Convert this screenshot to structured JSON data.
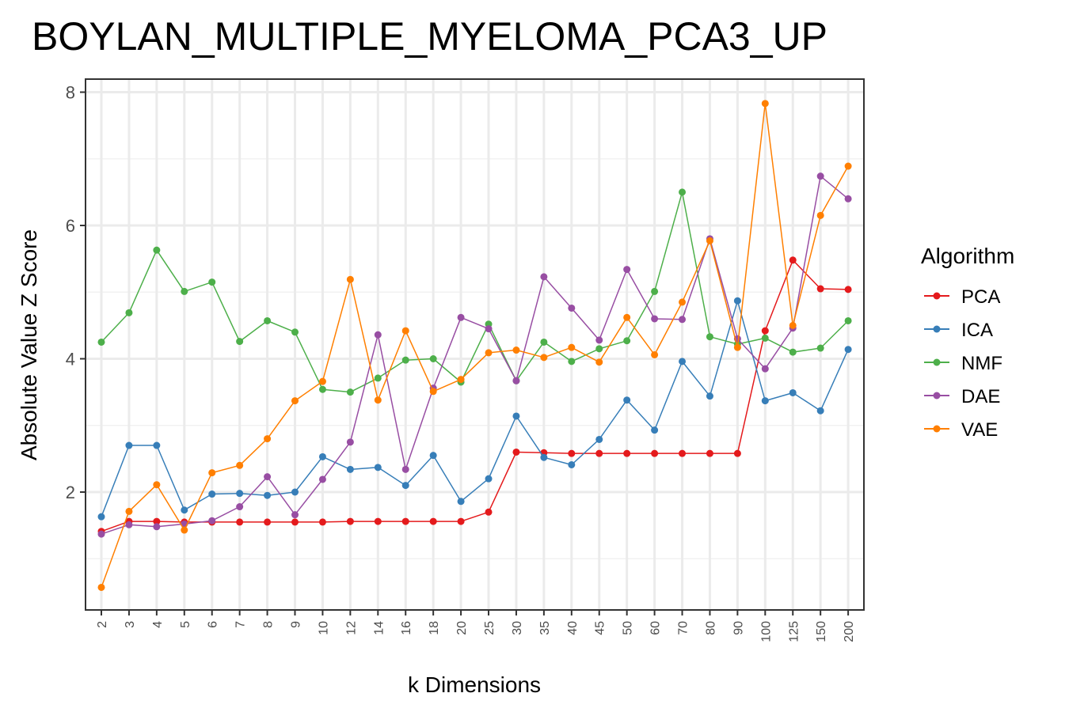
{
  "chart_data": {
    "type": "line",
    "title": "BOYLAN_MULTIPLE_MYELOMA_PCA3_UP",
    "xlabel": "k Dimensions",
    "ylabel": "Absolute Value Z Score",
    "categories": [
      "2",
      "3",
      "4",
      "5",
      "6",
      "7",
      "8",
      "9",
      "10",
      "12",
      "14",
      "16",
      "18",
      "20",
      "25",
      "30",
      "35",
      "40",
      "45",
      "50",
      "60",
      "70",
      "80",
      "90",
      "100",
      "125",
      "150",
      "200"
    ],
    "yticks": [
      2,
      4,
      6,
      8
    ],
    "ylim": [
      0.3,
      8.2
    ],
    "grid": true,
    "legend": {
      "title": "Algorithm",
      "position": "right"
    },
    "series": [
      {
        "name": "PCA",
        "color": "#e41a1c",
        "values": [
          1.41,
          1.56,
          1.56,
          1.55,
          1.55,
          1.55,
          1.55,
          1.55,
          1.55,
          1.56,
          1.56,
          1.56,
          1.56,
          1.56,
          1.7,
          2.6,
          2.59,
          2.58,
          2.58,
          2.58,
          2.58,
          2.58,
          2.58,
          2.58,
          4.42,
          5.48,
          5.05,
          5.04
        ]
      },
      {
        "name": "ICA",
        "color": "#377eb8",
        "values": [
          1.63,
          2.7,
          2.7,
          1.73,
          1.97,
          1.98,
          1.95,
          2.0,
          2.53,
          2.34,
          2.37,
          2.1,
          2.55,
          1.86,
          2.2,
          3.14,
          2.52,
          2.41,
          2.79,
          3.38,
          2.93,
          3.96,
          3.44,
          4.87,
          3.37,
          3.49,
          3.22,
          4.14
        ]
      },
      {
        "name": "NMF",
        "color": "#4daf4a",
        "values": [
          4.25,
          4.69,
          5.63,
          5.01,
          5.15,
          4.26,
          4.57,
          4.4,
          3.54,
          3.5,
          3.71,
          3.98,
          4.0,
          3.65,
          4.52,
          3.67,
          4.25,
          3.96,
          4.15,
          4.27,
          5.01,
          6.5,
          4.33,
          4.22,
          4.31,
          4.1,
          4.16,
          4.57
        ]
      },
      {
        "name": "DAE",
        "color": "#984ea3",
        "values": [
          1.37,
          1.51,
          1.48,
          1.52,
          1.57,
          1.78,
          2.23,
          1.66,
          2.19,
          2.75,
          4.36,
          2.34,
          3.56,
          4.62,
          4.45,
          3.67,
          5.23,
          4.76,
          4.28,
          5.34,
          4.6,
          4.59,
          5.8,
          4.3,
          3.85,
          4.46,
          6.74,
          6.4
        ]
      },
      {
        "name": "VAE",
        "color": "#ff7f00",
        "values": [
          0.57,
          1.71,
          2.11,
          1.43,
          2.29,
          2.4,
          2.8,
          3.37,
          3.66,
          5.19,
          3.38,
          4.42,
          3.51,
          3.69,
          4.09,
          4.13,
          4.02,
          4.17,
          3.95,
          4.62,
          4.06,
          4.85,
          5.77,
          4.17,
          7.83,
          4.5,
          6.15,
          6.89
        ]
      }
    ]
  }
}
